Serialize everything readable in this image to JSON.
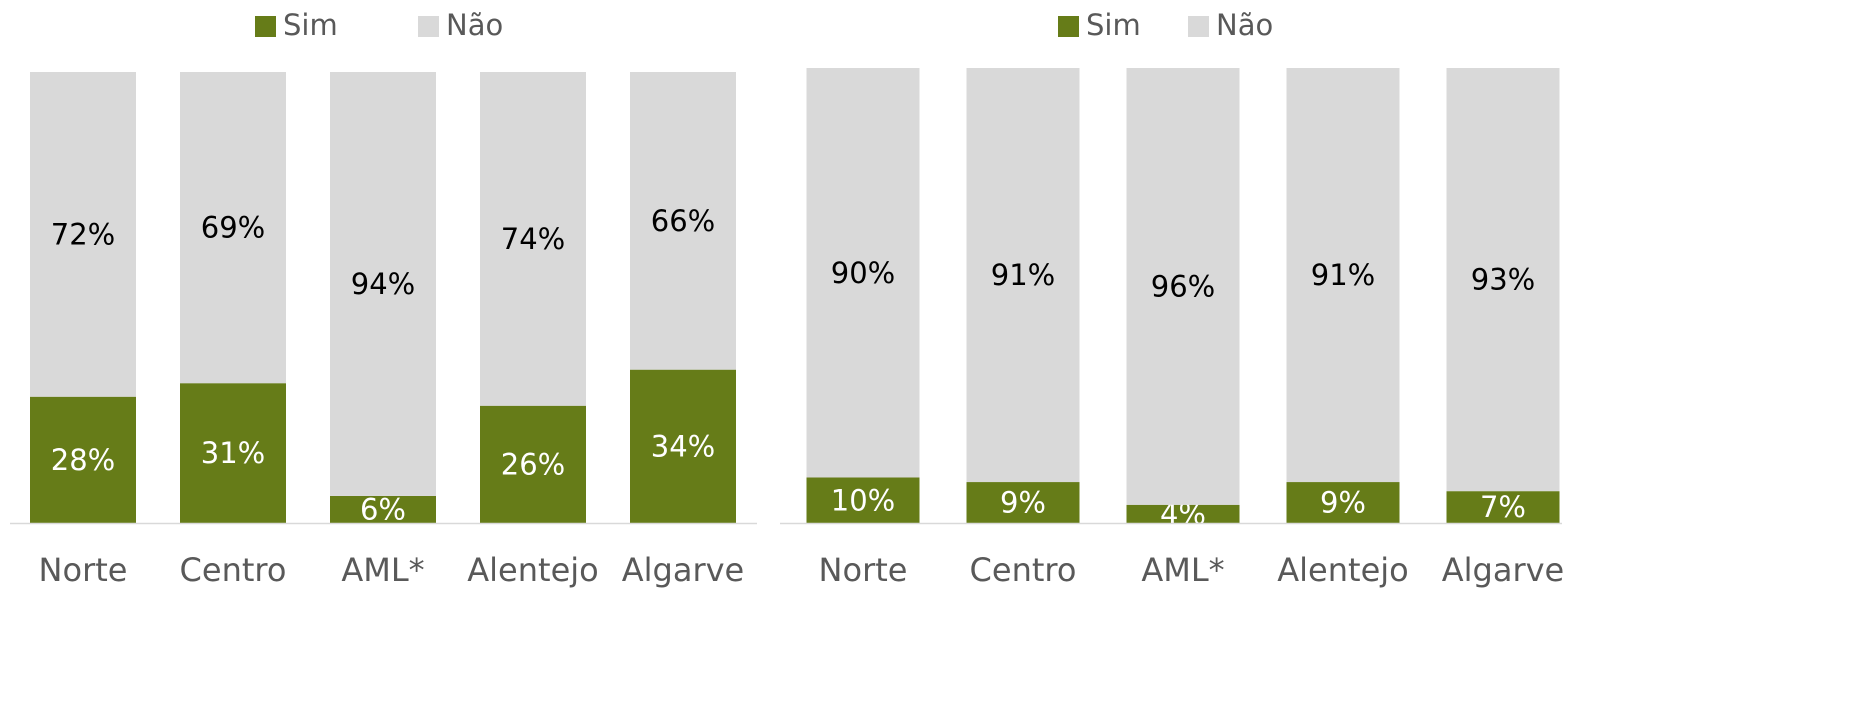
{
  "chart_data": [
    {
      "type": "bar",
      "stacked": true,
      "categories": [
        "Norte",
        "Centro",
        "AML*",
        "Alentejo",
        "Algarve"
      ],
      "series": [
        {
          "name": "Sim",
          "color": "#667c18",
          "values": [
            28,
            31,
            6,
            26,
            34
          ],
          "value_labels": [
            "28%",
            "31%",
            "6%",
            "26%",
            "34%"
          ]
        },
        {
          "name": "Não",
          "color": "#d9d9d9",
          "values": [
            72,
            69,
            94,
            74,
            66
          ],
          "value_labels": [
            "72%",
            "69%",
            "94%",
            "74%",
            "66%"
          ]
        }
      ],
      "ylim": [
        0,
        100
      ]
    },
    {
      "type": "bar",
      "stacked": true,
      "categories": [
        "Norte",
        "Centro",
        "AML*",
        "Alentejo",
        "Algarve"
      ],
      "series": [
        {
          "name": "Sim",
          "color": "#667c18",
          "values": [
            10,
            9,
            4,
            9,
            7
          ],
          "value_labels": [
            "10%",
            "9%",
            "4%",
            "9%",
            "7%"
          ]
        },
        {
          "name": "Não",
          "color": "#d9d9d9",
          "values": [
            90,
            91,
            96,
            91,
            93
          ],
          "value_labels": [
            "90%",
            "91%",
            "96%",
            "91%",
            "93%"
          ]
        }
      ],
      "ylim": [
        0,
        100
      ]
    }
  ]
}
